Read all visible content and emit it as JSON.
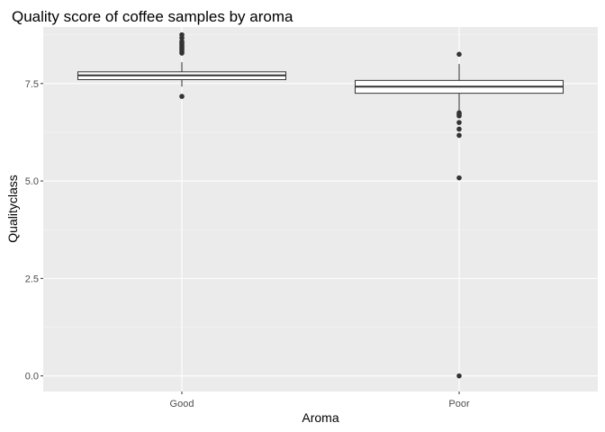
{
  "chart_data": {
    "type": "boxplot",
    "title": "Quality score of coffee samples by aroma",
    "xlabel": "Aroma",
    "ylabel": "Qualityclass",
    "categories": [
      "Good",
      "Poor"
    ],
    "ylim": [
      -0.4,
      8.95
    ],
    "yticks": [
      0.0,
      2.5,
      5.0,
      7.5
    ],
    "ytick_labels": [
      "0.0",
      "2.5",
      "5.0",
      "7.5"
    ],
    "boxes": [
      {
        "category": "Good",
        "whisker_low": 7.42,
        "q1": 7.6,
        "median": 7.71,
        "q3": 7.8,
        "whisker_high": 8.05,
        "outliers": [
          7.17,
          8.28,
          8.33,
          8.38,
          8.42,
          8.46,
          8.5,
          8.54,
          8.58,
          8.67,
          8.75
        ]
      },
      {
        "category": "Poor",
        "whisker_low": 6.8,
        "q1": 7.25,
        "median": 7.42,
        "q3": 7.58,
        "whisker_high": 8.0,
        "outliers": [
          8.25,
          6.75,
          6.71,
          6.67,
          6.5,
          6.33,
          6.17,
          5.08,
          0.0
        ]
      }
    ],
    "grid": true
  }
}
